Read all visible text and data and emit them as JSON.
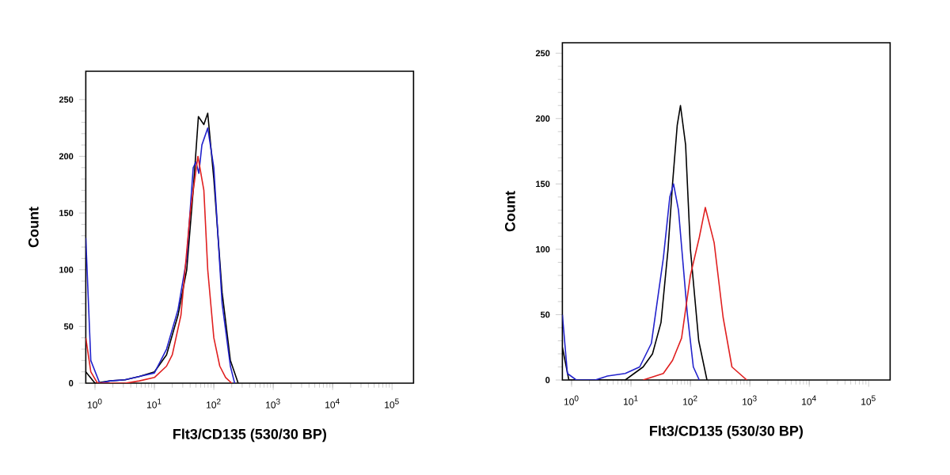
{
  "chart_data": [
    {
      "type": "line",
      "xlabel": "Flt3/CD135 (530/30 BP)",
      "ylabel": "Count",
      "log": "x",
      "grid": false,
      "legend": false,
      "marker": "none",
      "line_style": "solid",
      "xlim": [
        0.7,
        230000
      ],
      "ylim": [
        0,
        275
      ],
      "xticks": [
        {
          "value": 1,
          "label": "10$^{0}$"
        },
        {
          "value": 10,
          "label": "10$^{1}$"
        },
        {
          "value": 100,
          "label": "10$^{2}$"
        },
        {
          "value": 1000,
          "label": "10$^{3}$"
        },
        {
          "value": 10000,
          "label": "10$^{4}$"
        },
        {
          "value": 100000,
          "label": "10$^{5}$"
        }
      ],
      "yticks": [
        0,
        50,
        100,
        150,
        200,
        250
      ],
      "series": [
        {
          "color": "#000000",
          "x": [
            0.7,
            1,
            1.8,
            3.2,
            5.6,
            10,
            16,
            25,
            35,
            45,
            55,
            68,
            79,
            100,
            138,
            190,
            257
          ],
          "values": [
            10,
            0,
            2,
            3,
            6,
            10,
            25,
            60,
            100,
            170,
            235,
            228,
            238,
            180,
            80,
            20,
            0
          ]
        },
        {
          "color": "#2222cc",
          "x": [
            0.7,
            0.85,
            1.2,
            1.8,
            3.2,
            5.6,
            10,
            16,
            25,
            35,
            45,
            50,
            56,
            63,
            79,
            100,
            138,
            190,
            224
          ],
          "values": [
            128,
            20,
            0,
            2,
            3,
            6,
            9,
            30,
            65,
            110,
            190,
            195,
            185,
            210,
            225,
            190,
            70,
            15,
            0
          ]
        },
        {
          "color": "#e02020",
          "x": [
            0.7,
            0.85,
            1.1,
            3.2,
            5.6,
            10,
            16,
            20,
            28,
            40,
            54,
            68,
            79,
            100,
            126,
            158,
            200
          ],
          "values": [
            40,
            10,
            0,
            0,
            2,
            5,
            15,
            25,
            60,
            150,
            200,
            170,
            100,
            40,
            15,
            5,
            0
          ]
        }
      ]
    },
    {
      "type": "line",
      "xlabel": "Flt3/CD135 (530/30 BP)",
      "ylabel": "Count",
      "log": "x",
      "grid": false,
      "legend": false,
      "marker": "none",
      "line_style": "solid",
      "xlim": [
        0.7,
        230000
      ],
      "ylim": [
        0,
        258
      ],
      "xticks": [
        {
          "value": 1,
          "label": "10$^{0}$"
        },
        {
          "value": 10,
          "label": "10$^{1}$"
        },
        {
          "value": 100,
          "label": "10$^{2}$"
        },
        {
          "value": 1000,
          "label": "10$^{3}$"
        },
        {
          "value": 10000,
          "label": "10$^{4}$"
        },
        {
          "value": 100000,
          "label": "10$^{5}$"
        }
      ],
      "yticks": [
        0,
        50,
        100,
        150,
        200,
        250
      ],
      "series": [
        {
          "color": "#000000",
          "x": [
            0.7,
            0.9,
            8,
            16,
            23,
            32,
            42,
            50,
            60,
            68,
            83,
            100,
            138,
            190
          ],
          "values": [
            25,
            0,
            0,
            10,
            20,
            44,
            100,
            150,
            195,
            210,
            180,
            100,
            30,
            0
          ]
        },
        {
          "color": "#2222cc",
          "x": [
            0.7,
            0.85,
            1.2,
            2.5,
            4,
            8,
            14,
            22,
            35,
            45,
            52,
            63,
            89,
            112,
            141
          ],
          "values": [
            50,
            5,
            0,
            0,
            3,
            5,
            10,
            28,
            93,
            140,
            150,
            130,
            50,
            10,
            0
          ]
        },
        {
          "color": "#e02020",
          "x": [
            16,
            35,
            50,
            71,
            100,
            141,
            178,
            251,
            355,
            500,
            890
          ],
          "values": [
            0,
            5,
            15,
            32,
            80,
            109,
            132,
            105,
            48,
            10,
            0
          ]
        }
      ]
    }
  ]
}
